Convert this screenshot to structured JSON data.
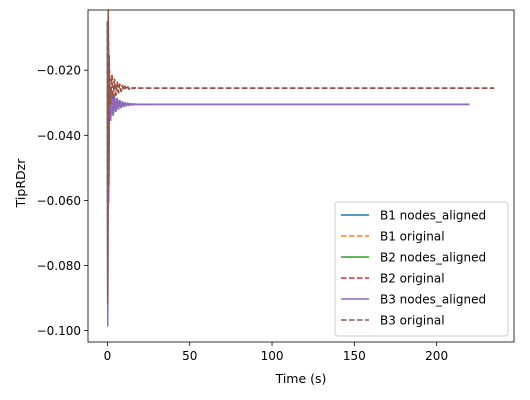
{
  "chart_data": {
    "type": "line",
    "title": "",
    "xlabel": "Time (s)",
    "ylabel": "TipRDzr",
    "xlim": [
      -11.8,
      247.0
    ],
    "ylim": [
      -0.1035,
      -0.0015
    ],
    "xticks": [
      0,
      50,
      100,
      150,
      200
    ],
    "xtick_labels": [
      "0",
      "50",
      "100",
      "150",
      "200"
    ],
    "yticks": [
      -0.1,
      -0.08,
      -0.06,
      -0.04,
      -0.02
    ],
    "ytick_labels": [
      "−0.100",
      "−0.080",
      "−0.060",
      "−0.040",
      "−0.020"
    ],
    "grid": false,
    "legend_position": "lower-right",
    "series": [
      {
        "name": "B1 nodes_aligned",
        "color": "#1f77b4",
        "dash": "solid",
        "x_end": 220,
        "steady": -0.0305,
        "initial_low": -0.0985,
        "initial_high": -0.005
      },
      {
        "name": "B1 original",
        "color": "#ff7f0e",
        "dash": "dashed",
        "x_end": 235,
        "steady": -0.0255,
        "initial_low": -0.0915,
        "initial_high": -0.005
      },
      {
        "name": "B2 nodes_aligned",
        "color": "#2ca02c",
        "dash": "solid",
        "x_end": 220,
        "steady": -0.0305,
        "initial_low": -0.0985,
        "initial_high": -0.005
      },
      {
        "name": "B2 original",
        "color": "#d62728",
        "dash": "dashed",
        "x_end": 235,
        "steady": -0.0255,
        "initial_low": -0.0915,
        "initial_high": -0.005
      },
      {
        "name": "B3 nodes_aligned",
        "color": "#9467bd",
        "dash": "solid",
        "x_end": 220,
        "steady": -0.0305,
        "initial_low": -0.0985,
        "initial_high": -0.005
      },
      {
        "name": "B3 original",
        "color": "#8c564b",
        "dash": "dashed",
        "x_end": 235,
        "steady": -0.0255,
        "initial_low": -0.0915,
        "initial_high": -0.005
      }
    ]
  }
}
